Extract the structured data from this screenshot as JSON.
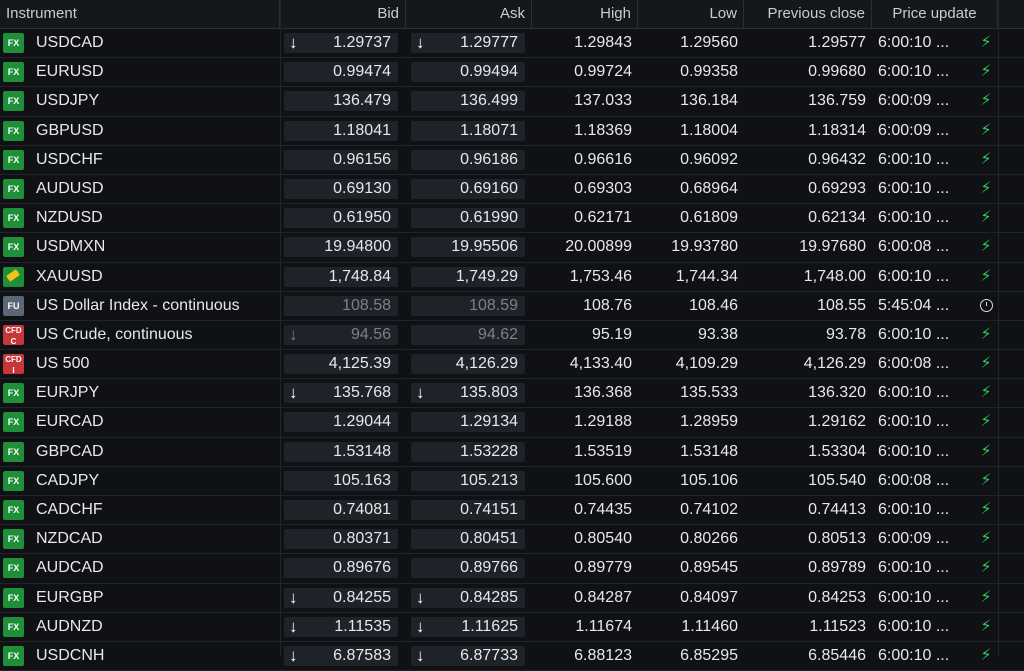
{
  "columns": {
    "instrument": "Instrument",
    "bid": "Bid",
    "ask": "Ask",
    "high": "High",
    "low": "Low",
    "previous_close": "Previous close",
    "price_update": "Price update"
  },
  "colors": {
    "background": "#0f1115",
    "bolt": "#2ecc5a",
    "fx_badge": "#1f8f3a",
    "cfd_badge": "#c7373a"
  },
  "rows": [
    {
      "type": "FX",
      "name": "USDCAD",
      "bid": "1.29737",
      "ask": "1.29777",
      "high": "1.29843",
      "low": "1.29560",
      "prev": "1.29577",
      "time": "6:00:10 ...",
      "arrow_bid": "down",
      "arrow_ask": "down",
      "status": "live",
      "dim": false
    },
    {
      "type": "FX",
      "name": "EURUSD",
      "bid": "0.99474",
      "ask": "0.99494",
      "high": "0.99724",
      "low": "0.99358",
      "prev": "0.99680",
      "time": "6:00:10 ...",
      "arrow_bid": "",
      "arrow_ask": "",
      "status": "live",
      "dim": false
    },
    {
      "type": "FX",
      "name": "USDJPY",
      "bid": "136.479",
      "ask": "136.499",
      "high": "137.033",
      "low": "136.184",
      "prev": "136.759",
      "time": "6:00:09 ...",
      "arrow_bid": "",
      "arrow_ask": "",
      "status": "live",
      "dim": false
    },
    {
      "type": "FX",
      "name": "GBPUSD",
      "bid": "1.18041",
      "ask": "1.18071",
      "high": "1.18369",
      "low": "1.18004",
      "prev": "1.18314",
      "time": "6:00:09 ...",
      "arrow_bid": "",
      "arrow_ask": "",
      "status": "live",
      "dim": false
    },
    {
      "type": "FX",
      "name": "USDCHF",
      "bid": "0.96156",
      "ask": "0.96186",
      "high": "0.96616",
      "low": "0.96092",
      "prev": "0.96432",
      "time": "6:00:10 ...",
      "arrow_bid": "",
      "arrow_ask": "",
      "status": "live",
      "dim": false
    },
    {
      "type": "FX",
      "name": "AUDUSD",
      "bid": "0.69130",
      "ask": "0.69160",
      "high": "0.69303",
      "low": "0.68964",
      "prev": "0.69293",
      "time": "6:00:10 ...",
      "arrow_bid": "",
      "arrow_ask": "",
      "status": "live",
      "dim": false
    },
    {
      "type": "FX",
      "name": "NZDUSD",
      "bid": "0.61950",
      "ask": "0.61990",
      "high": "0.62171",
      "low": "0.61809",
      "prev": "0.62134",
      "time": "6:00:10 ...",
      "arrow_bid": "",
      "arrow_ask": "",
      "status": "live",
      "dim": false
    },
    {
      "type": "FX",
      "name": "USDMXN",
      "bid": "19.94800",
      "ask": "19.95506",
      "high": "20.00899",
      "low": "19.93780",
      "prev": "19.97680",
      "time": "6:00:08 ...",
      "arrow_bid": "",
      "arrow_ask": "",
      "status": "live",
      "dim": false
    },
    {
      "type": "GOLD",
      "name": "XAUUSD",
      "bid": "1,748.84",
      "ask": "1,749.29",
      "high": "1,753.46",
      "low": "1,744.34",
      "prev": "1,748.00",
      "time": "6:00:10 ...",
      "arrow_bid": "",
      "arrow_ask": "",
      "status": "live",
      "dim": false
    },
    {
      "type": "FU",
      "name": "US Dollar Index - continuous",
      "bid": "108.58",
      "ask": "108.59",
      "high": "108.76",
      "low": "108.46",
      "prev": "108.55",
      "time": "5:45:04 ...",
      "arrow_bid": "",
      "arrow_ask": "",
      "status": "clock",
      "dim": true
    },
    {
      "type": "CFD",
      "sub": "C",
      "name": "US Crude, continuous",
      "bid": "94.56",
      "ask": "94.62",
      "high": "95.19",
      "low": "93.38",
      "prev": "93.78",
      "time": "6:00:10 ...",
      "arrow_bid": "down",
      "arrow_ask": "",
      "status": "live",
      "dim": true
    },
    {
      "type": "CFD",
      "sub": "I",
      "name": "US 500",
      "bid": "4,125.39",
      "ask": "4,126.29",
      "high": "4,133.40",
      "low": "4,109.29",
      "prev": "4,126.29",
      "time": "6:00:08 ...",
      "arrow_bid": "",
      "arrow_ask": "",
      "status": "live",
      "dim": false
    },
    {
      "type": "FX",
      "name": "EURJPY",
      "bid": "135.768",
      "ask": "135.803",
      "high": "136.368",
      "low": "135.533",
      "prev": "136.320",
      "time": "6:00:10 ...",
      "arrow_bid": "down",
      "arrow_ask": "down",
      "status": "live",
      "dim": false
    },
    {
      "type": "FX",
      "name": "EURCAD",
      "bid": "1.29044",
      "ask": "1.29134",
      "high": "1.29188",
      "low": "1.28959",
      "prev": "1.29162",
      "time": "6:00:10 ...",
      "arrow_bid": "",
      "arrow_ask": "",
      "status": "live",
      "dim": false
    },
    {
      "type": "FX",
      "name": "GBPCAD",
      "bid": "1.53148",
      "ask": "1.53228",
      "high": "1.53519",
      "low": "1.53148",
      "prev": "1.53304",
      "time": "6:00:10 ...",
      "arrow_bid": "",
      "arrow_ask": "",
      "status": "live",
      "dim": false
    },
    {
      "type": "FX",
      "name": "CADJPY",
      "bid": "105.163",
      "ask": "105.213",
      "high": "105.600",
      "low": "105.106",
      "prev": "105.540",
      "time": "6:00:08 ...",
      "arrow_bid": "",
      "arrow_ask": "",
      "status": "live",
      "dim": false
    },
    {
      "type": "FX",
      "name": "CADCHF",
      "bid": "0.74081",
      "ask": "0.74151",
      "high": "0.74435",
      "low": "0.74102",
      "prev": "0.74413",
      "time": "6:00:10 ...",
      "arrow_bid": "",
      "arrow_ask": "",
      "status": "live",
      "dim": false
    },
    {
      "type": "FX",
      "name": "NZDCAD",
      "bid": "0.80371",
      "ask": "0.80451",
      "high": "0.80540",
      "low": "0.80266",
      "prev": "0.80513",
      "time": "6:00:09 ...",
      "arrow_bid": "",
      "arrow_ask": "",
      "status": "live",
      "dim": false
    },
    {
      "type": "FX",
      "name": "AUDCAD",
      "bid": "0.89676",
      "ask": "0.89766",
      "high": "0.89779",
      "low": "0.89545",
      "prev": "0.89789",
      "time": "6:00:10 ...",
      "arrow_bid": "",
      "arrow_ask": "",
      "status": "live",
      "dim": false
    },
    {
      "type": "FX",
      "name": "EURGBP",
      "bid": "0.84255",
      "ask": "0.84285",
      "high": "0.84287",
      "low": "0.84097",
      "prev": "0.84253",
      "time": "6:00:10 ...",
      "arrow_bid": "down",
      "arrow_ask": "down",
      "status": "live",
      "dim": false
    },
    {
      "type": "FX",
      "name": "AUDNZD",
      "bid": "1.11535",
      "ask": "1.11625",
      "high": "1.11674",
      "low": "1.11460",
      "prev": "1.11523",
      "time": "6:00:10 ...",
      "arrow_bid": "down",
      "arrow_ask": "down",
      "status": "live",
      "dim": false
    },
    {
      "type": "FX",
      "name": "USDCNH",
      "bid": "6.87583",
      "ask": "6.87733",
      "high": "6.88123",
      "low": "6.85295",
      "prev": "6.85446",
      "time": "6:00:10 ...",
      "arrow_bid": "down",
      "arrow_ask": "down",
      "status": "live",
      "dim": false
    }
  ]
}
